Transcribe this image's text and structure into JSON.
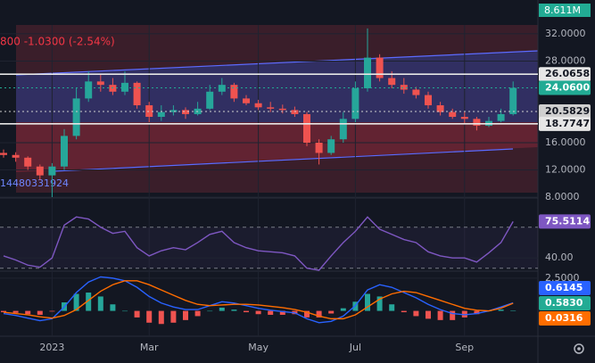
{
  "chart_data": [
    {
      "type": "candlestick",
      "header": "800 -1.0300 (-2.54%)",
      "volume_label": "8.611M",
      "footnote": "14480331924",
      "categories": [
        null,
        null,
        null,
        null,
        "2023",
        null,
        null,
        null,
        null,
        null,
        null,
        null,
        "Mar",
        null,
        null,
        null,
        null,
        null,
        null,
        null,
        null,
        "May",
        null,
        null,
        null,
        null,
        null,
        null,
        null,
        "Jul",
        null,
        null,
        null,
        null,
        null,
        null,
        null,
        null,
        "Sep",
        null,
        null,
        null,
        null
      ],
      "open": [
        14.5,
        14.2,
        13.8,
        12.5,
        11.2,
        12.5,
        17,
        22.5,
        25,
        24.5,
        23.5,
        24.8,
        21.5,
        19.8,
        20.5,
        20.8,
        20.2,
        21,
        23.5,
        24.5,
        22.5,
        21.8,
        21.2,
        21,
        20.8,
        20.2,
        16,
        14.5,
        16.5,
        19.5,
        24,
        28.5,
        25.5,
        24.5,
        23.8,
        23,
        21.5,
        20.5,
        19.8,
        19.5,
        18.5,
        19.2,
        20.2
      ],
      "high": [
        15,
        14.6,
        14,
        12.8,
        13,
        18,
        24,
        26.5,
        26,
        25.5,
        26.5,
        25,
        22,
        21.5,
        21.5,
        21.2,
        22,
        24.5,
        25.5,
        24.8,
        23,
        22.3,
        22,
        21.6,
        21.3,
        20.5,
        16.5,
        17,
        20.5,
        25,
        32.8,
        29,
        26.5,
        25.5,
        24.2,
        23.5,
        22,
        21,
        20.5,
        19.8,
        19.8,
        21,
        25
      ],
      "low": [
        13.8,
        13.2,
        12,
        10.5,
        8,
        12,
        16.5,
        22,
        23.5,
        23,
        23,
        21,
        19,
        19.2,
        20,
        19.5,
        20,
        20.8,
        23,
        22,
        21.5,
        20.8,
        20.5,
        20.3,
        19.8,
        15.5,
        12.8,
        14.2,
        16,
        19,
        23.5,
        25,
        24,
        23.2,
        22.5,
        21,
        20,
        19.5,
        18.8,
        17.8,
        18.3,
        19,
        20
      ],
      "close": [
        14.2,
        13.8,
        12.5,
        11.2,
        12.5,
        17,
        22.5,
        25,
        24.5,
        23.5,
        24.8,
        21.5,
        19.8,
        20.5,
        20.8,
        20.2,
        21,
        23.5,
        24.5,
        22.5,
        21.8,
        21.2,
        21,
        20.8,
        20.2,
        16,
        14.5,
        16.5,
        19.5,
        24,
        28.5,
        25.5,
        24.5,
        23.8,
        23,
        21.5,
        20.5,
        19.8,
        19.5,
        18.5,
        19.2,
        20.2,
        24.06
      ],
      "up_color": "#26a69a",
      "down_color": "#ef5350",
      "ylim": [
        8.4,
        33.3
      ],
      "yticks": [
        {
          "value": 32,
          "label": "32.0000"
        },
        {
          "value": 28,
          "label": "28.0000"
        },
        {
          "value": 16,
          "label": "16.0000"
        },
        {
          "value": 12,
          "label": "12.0000"
        },
        {
          "value": 8,
          "label": "8.0000"
        }
      ],
      "price_lines": {
        "values": [
          26.0658,
          24.06,
          20.5829,
          18.7747
        ],
        "value_labels": [
          "26.0658",
          "24.0600",
          "20.5829",
          "18.7747"
        ],
        "colors": [
          "#e6e6e6",
          "#22ab94",
          "#cfcfcf",
          "#e6e6e6"
        ],
        "dashed": [
          false,
          true,
          true,
          false
        ]
      }
    },
    {
      "type": "line",
      "values": [
        42,
        38,
        33,
        31,
        40,
        72,
        80,
        78,
        70,
        64,
        66,
        50,
        42,
        47,
        50,
        48,
        55,
        63,
        66,
        55,
        50,
        47,
        46,
        45,
        42,
        30,
        28,
        42,
        55,
        66,
        80,
        68,
        63,
        58,
        55,
        46,
        42,
        40,
        40,
        36,
        45,
        55,
        75.5114
      ],
      "color": "#7e57c2",
      "ylim": [
        28,
        95
      ],
      "yticks": [
        {
          "value": 40,
          "label": "40.00"
        }
      ],
      "levels": [
        70,
        30
      ]
    },
    {
      "type": "macd",
      "series": [
        {
          "color": "#2962ff",
          "values": [
            -0.2,
            -0.35,
            -0.55,
            -0.75,
            -0.6,
            0.3,
            1.4,
            2.2,
            2.6,
            2.5,
            2.3,
            1.8,
            1.1,
            0.6,
            0.3,
            0.1,
            0.1,
            0.4,
            0.7,
            0.6,
            0.4,
            0.2,
            0.05,
            -0.05,
            -0.15,
            -0.6,
            -0.9,
            -0.8,
            -0.4,
            0.4,
            1.6,
            2.0,
            1.8,
            1.4,
            1.0,
            0.5,
            0.1,
            -0.2,
            -0.3,
            -0.2,
            0.0,
            0.3,
            0.6145
          ]
        },
        {
          "color": "#ff6d00",
          "values": [
            -0.1,
            -0.2,
            -0.3,
            -0.45,
            -0.55,
            -0.35,
            0.1,
            0.8,
            1.5,
            2.0,
            2.3,
            2.3,
            2.0,
            1.6,
            1.2,
            0.8,
            0.5,
            0.4,
            0.45,
            0.5,
            0.5,
            0.45,
            0.35,
            0.25,
            0.1,
            -0.1,
            -0.4,
            -0.6,
            -0.6,
            -0.3,
            0.3,
            0.9,
            1.3,
            1.5,
            1.4,
            1.1,
            0.8,
            0.5,
            0.2,
            0.05,
            0.0,
            0.2,
            0.583
          ],
          "value_labels": [
            null,
            null,
            null,
            null,
            null,
            null,
            null,
            null,
            null,
            null,
            null,
            null,
            null,
            null,
            null,
            null,
            null,
            null,
            null,
            null,
            null,
            null,
            null,
            null,
            null,
            null,
            null,
            null,
            null,
            null,
            null,
            null,
            null,
            null,
            null,
            null,
            null,
            null,
            null,
            null,
            null,
            null,
            "0.5830"
          ]
        }
      ],
      "histogram": [
        -0.1,
        -0.15,
        -0.25,
        -0.3,
        -0.05,
        0.65,
        1.3,
        1.4,
        1.1,
        0.5,
        0,
        -0.5,
        -0.9,
        -1.0,
        -0.9,
        -0.7,
        -0.4,
        0,
        0.25,
        0.1,
        -0.1,
        -0.25,
        -0.3,
        -0.3,
        -0.25,
        -0.5,
        -0.5,
        -0.2,
        0.2,
        0.7,
        1.3,
        1.1,
        0.5,
        -0.1,
        -0.4,
        -0.6,
        -0.7,
        -0.7,
        -0.5,
        -0.25,
        0,
        0.1,
        0.0316
      ],
      "histogram_colors": [
        "#26a69a",
        "#ef5350"
      ],
      "label_colors": [
        "#2962ff",
        "#22ab94",
        "#ff6d00"
      ],
      "ylim": [
        -1.8,
        2.9
      ],
      "yticks": [
        {
          "value": 2.5,
          "label": "2.5000"
        }
      ]
    }
  ]
}
